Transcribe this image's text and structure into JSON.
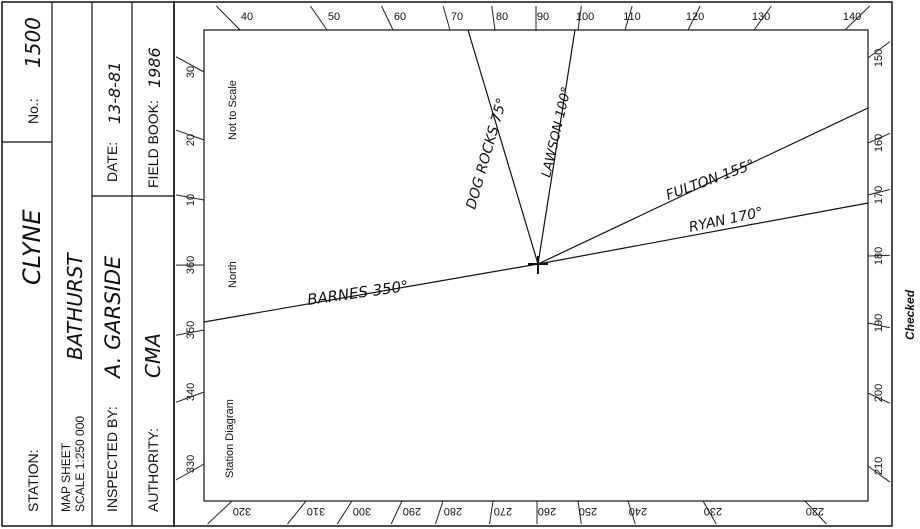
{
  "header": {
    "station_label": "STATION:",
    "station_name": "CLYNE",
    "number_label": "No.:",
    "number_value": "1500",
    "map_sheet_label": "MAP SHEET",
    "scale_label": "SCALE 1:250 000",
    "map_sheet_value": "BATHURST",
    "date_label": "DATE:",
    "date_value": "13-8-81",
    "inspected_label": "INSPECTED BY:",
    "inspected_value": "A. GARSIDE",
    "field_book_label": "FIELD BOOK:",
    "field_book_value": "1986",
    "authority_label": "AUTHORITY:",
    "authority_value": "CMA"
  },
  "diagram": {
    "not_to_scale": "Not to Scale",
    "north_label": "North",
    "title": "Station Diagram",
    "checked_label": "Checked",
    "scale_labels": {
      "top": [
        "40",
        "50",
        "60",
        "70",
        "80",
        "90",
        "100",
        "110",
        "120",
        "130",
        "140"
      ],
      "right": [
        "150",
        "160",
        "170",
        "180",
        "190",
        "200",
        "210"
      ],
      "bottom": [
        "320",
        "310",
        "300",
        "290",
        "280",
        "270",
        "260",
        "250",
        "240",
        "230",
        "220"
      ],
      "left": [
        "30",
        "20",
        "10",
        "360",
        "350",
        "340",
        "330"
      ]
    },
    "rays": [
      {
        "name": "DOG ROCKS",
        "bearing_label": "75°",
        "bearing_deg": 75
      },
      {
        "name": "LAWSON",
        "bearing_label": "100°",
        "bearing_deg": 100
      },
      {
        "name": "FULTON",
        "bearing_label": "155°",
        "bearing_deg": 155
      },
      {
        "name": "RYAN",
        "bearing_label": "170°",
        "bearing_deg": 170
      },
      {
        "name": "BARNES",
        "bearing_label": "350°",
        "bearing_deg": 350
      }
    ]
  }
}
